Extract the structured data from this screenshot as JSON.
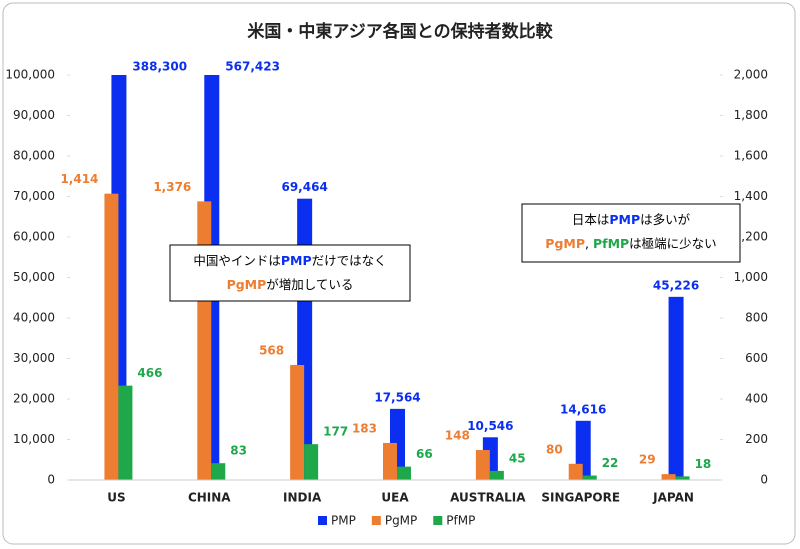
{
  "chart_data": {
    "type": "bar",
    "title": "米国・中東アジア各国との保持者数比較",
    "categories": [
      "US",
      "CHINA",
      "INDIA",
      "UEA",
      "AUSTRALIA",
      "SINGAPORE",
      "JAPAN"
    ],
    "series": [
      {
        "name": "PMP",
        "color": "#0a2ff0",
        "axis": "y",
        "values": [
          388300,
          567423,
          69464,
          17564,
          10546,
          14616,
          45226
        ],
        "value_labels": [
          "388,300",
          "567,423",
          "69,464",
          "17,564",
          "10,546",
          "14,616",
          "45,226"
        ]
      },
      {
        "name": "PgMP",
        "color": "#ed7d31",
        "axis": "y2",
        "values": [
          1414,
          1376,
          568,
          183,
          148,
          80,
          29
        ],
        "value_labels": [
          "1,414",
          "1,376",
          "568",
          "183",
          "148",
          "80",
          "29"
        ]
      },
      {
        "name": "PfMP",
        "color": "#1ea84a",
        "axis": "y2",
        "values": [
          466,
          83,
          177,
          66,
          45,
          22,
          18
        ]
      }
    ],
    "ylim": [
      0,
      100000
    ],
    "yticks": [
      0,
      {
        "value": 10000,
        "label": "10,000"
      },
      {
        "value": 20000,
        "label": "20,000"
      },
      {
        "value": 30000,
        "label": "30,000"
      },
      {
        "value": 40000,
        "label": "40,000"
      },
      {
        "value": 50000,
        "label": "50,000"
      },
      {
        "value": 60000,
        "label": "60,000"
      },
      {
        "value": 70000,
        "label": "70,000"
      },
      {
        "value": 80000,
        "label": "80,000"
      },
      {
        "value": 90000,
        "label": "90,000"
      },
      {
        "value": 100000,
        "label": "100,000"
      }
    ],
    "y2lim": [
      0,
      2000
    ],
    "y2ticks": [
      0,
      200,
      400,
      600,
      800,
      {
        "value": 1000,
        "label": "1,000"
      },
      {
        "value": 1200,
        "label": "1,200"
      },
      {
        "value": 1400,
        "label": "1,400"
      },
      {
        "value": 1600,
        "label": "1,600"
      },
      {
        "value": 1800,
        "label": "1,800"
      },
      {
        "value": 2000,
        "label": "2,000"
      }
    ],
    "annotations": [
      {
        "lines": [
          [
            {
              "text": "中国やインドは",
              "color": "#000000"
            },
            {
              "text": "PMP",
              "color": "#0a2ff0"
            },
            {
              "text": "だけではなく",
              "color": "#000000"
            }
          ],
          [
            {
              "text": "PgMP",
              "color": "#ed7d31"
            },
            {
              "text": "が増加している",
              "color": "#000000"
            }
          ]
        ]
      },
      {
        "lines": [
          [
            {
              "text": "日本は",
              "color": "#000000"
            },
            {
              "text": "PMP",
              "color": "#0a2ff0"
            },
            {
              "text": "は多いが",
              "color": "#000000"
            }
          ],
          [
            {
              "text": "PgMP",
              "color": "#ed7d31"
            },
            {
              "text": ", ",
              "color": "#000000"
            },
            {
              "text": "PfMP",
              "color": "#1ea84a"
            },
            {
              "text": "は極端に少ない",
              "color": "#000000"
            }
          ]
        ]
      }
    ],
    "legend": "bottom"
  }
}
